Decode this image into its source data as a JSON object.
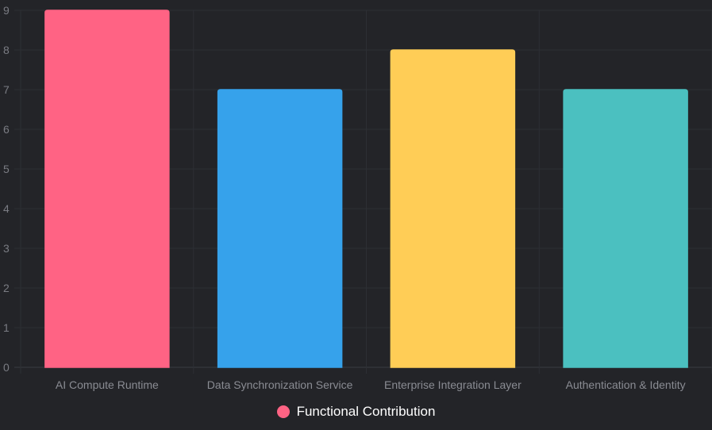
{
  "chart_data": {
    "type": "bar",
    "categories": [
      "AI Compute Runtime",
      "Data Synchronization Service",
      "Enterprise Integration Layer",
      "Authentication & Identity"
    ],
    "series": [
      {
        "name": "Functional Contribution",
        "values": [
          9,
          7,
          8,
          7
        ]
      }
    ],
    "bar_colors": [
      "#ff6384",
      "#36a2eb",
      "#ffcd56",
      "#4bc0c0"
    ],
    "ylim": [
      0,
      9
    ],
    "yticks": [
      "0",
      "1",
      "2",
      "3",
      "4",
      "5",
      "6",
      "7",
      "8",
      "9"
    ],
    "grid": true,
    "legend_position": "bottom",
    "legend_color": "#ff6384"
  }
}
